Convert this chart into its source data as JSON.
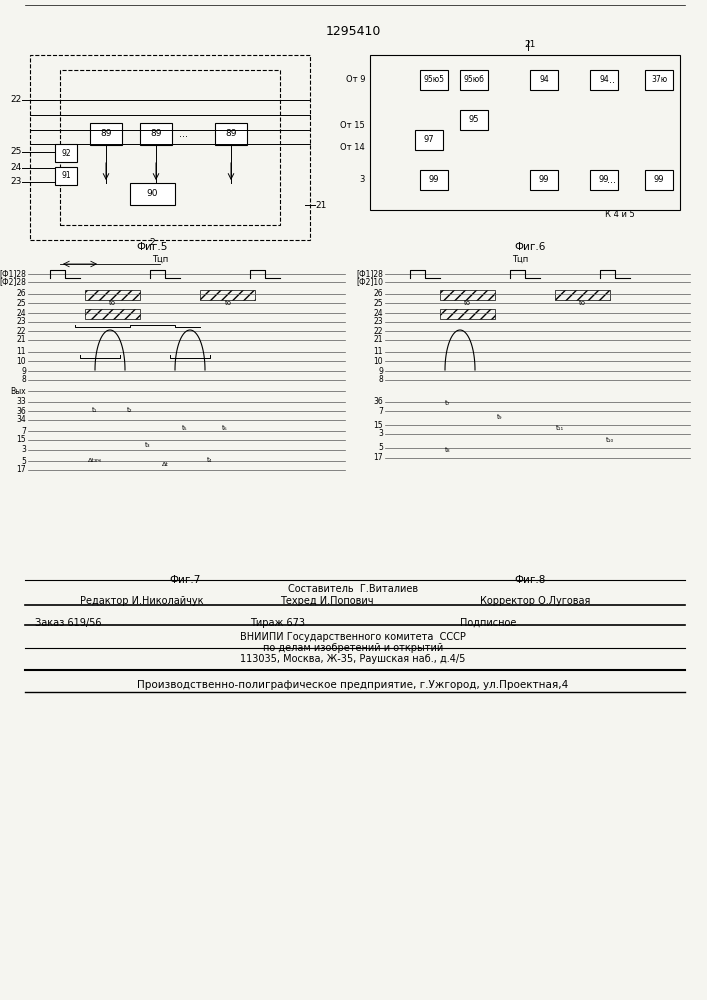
{
  "title": "1295410",
  "background_color": "#f5f5f0",
  "page_color": "#f5f5f0",
  "fig5_label": "Фиг.5",
  "fig6_label": "Фиг.6",
  "fig7_label": "Фиг.7",
  "fig8_label": "Фиг.8",
  "footer_line1": "Составитель  Г.Виталиев",
  "footer_line2_left": "Редактор И.Николайчук",
  "footer_line2_mid": "Техред И.Попович",
  "footer_line2_right": "Корректор О.Луговая",
  "footer_line3_left": "Заказ 619/56",
  "footer_line3_mid": "Тираж 673",
  "footer_line3_right": "Подписное",
  "footer_line4": "ВНИИПИ Государственного комитета  СССР",
  "footer_line5": "по делам изобретений и открытий",
  "footer_line6": "113035, Москва, Ж-35, Раушская наб., д.4/5",
  "footer_line7": "Производственно-полиграфическое предприятие, г.Ужгород, ул.Проектная,4"
}
